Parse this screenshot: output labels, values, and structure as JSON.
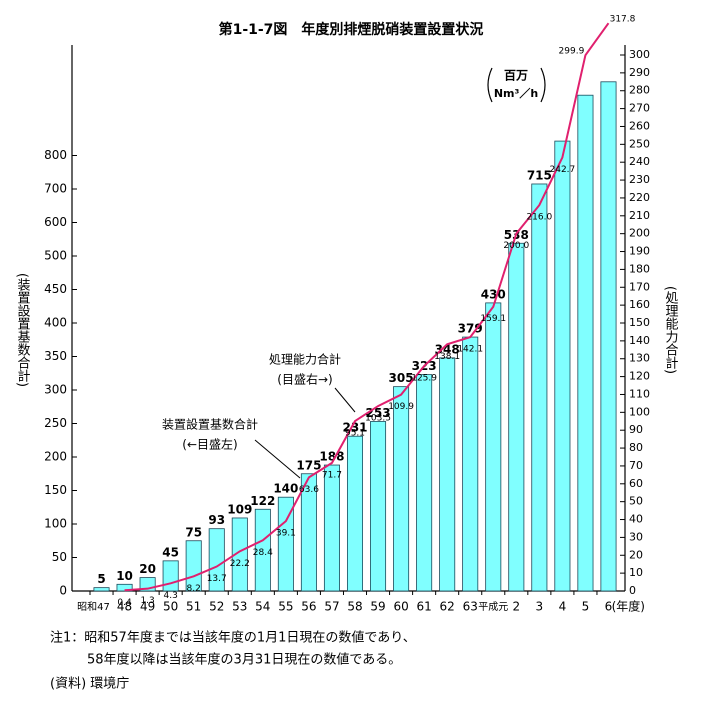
{
  "chart_data": {
    "type": "bar_line",
    "title": "第1-1-7図　年度別排煙脱硝装置設置状況",
    "categories": [
      "昭和47",
      "48",
      "49",
      "50",
      "51",
      "52",
      "53",
      "54",
      "55",
      "56",
      "57",
      "58",
      "59",
      "60",
      "61",
      "62",
      "63",
      "平成元",
      "2",
      "3",
      "4",
      "5",
      "6"
    ],
    "x_label": "(年度)",
    "y_label": "(装置設置基数合計)",
    "y2_label": "(処理能力合計)",
    "unit_label": [
      "百万",
      "Nm³／h"
    ],
    "series": [
      {
        "name": "装置設置基数合計",
        "note": "(←目盛左)",
        "color": "#80ffff",
        "axis": "y",
        "values": [
          5,
          10,
          20,
          45,
          75,
          93,
          109,
          122,
          140,
          175,
          188,
          231,
          253,
          305,
          323,
          348,
          379,
          430,
          538,
          715,
          843,
          980,
          1020
        ],
        "value_labels": [
          "5",
          "10",
          "20",
          "45",
          "75",
          "93",
          "109",
          "122",
          "140",
          "175",
          "188",
          "231",
          "253",
          "305",
          "323",
          "348",
          "379",
          "430",
          "538",
          "715",
          null,
          null,
          null
        ]
      },
      {
        "name": "処理能力合計",
        "note": "(目盛右→)",
        "color": "#e0206e",
        "axis": "y2",
        "values": [
          null,
          0.4,
          1.3,
          4.3,
          8.2,
          13.7,
          22.2,
          28.4,
          39.1,
          63.6,
          71.7,
          95.1,
          103.5,
          109.9,
          125.9,
          138.1,
          142.1,
          159.1,
          200.0,
          216.0,
          242.7,
          299.9,
          317.8
        ],
        "value_labels": [
          null,
          "0.4",
          "1.3",
          "4.3",
          "8.2",
          "13.7",
          "22.2",
          "28.4",
          "39.1",
          "63.6",
          "71.7",
          "95.1",
          "103.5",
          "109.9",
          "125.9",
          "138.1",
          "142.1",
          "159.1",
          "200.0",
          "216.0",
          "242.7",
          "299.9",
          "317.8"
        ]
      }
    ],
    "ylim": [
      0,
      1100
    ],
    "yticks": [
      0,
      50,
      100,
      150,
      200,
      250,
      300,
      350,
      400,
      450,
      500,
      600,
      700,
      800
    ],
    "y2lim": [
      0,
      300
    ],
    "y2ticks": [
      0,
      10,
      20,
      30,
      40,
      50,
      60,
      70,
      80,
      90,
      100,
      110,
      120,
      130,
      140,
      150,
      160,
      170,
      180,
      190,
      200,
      210,
      220,
      230,
      240,
      250,
      260,
      270,
      280,
      290,
      300
    ],
    "notes": [
      "注1：昭和57年度までは当該年度の1月1日現在の数値であり、",
      "58年度以降は当該年度の3月31日現在の数値である。",
      "(資料)  環境庁"
    ]
  }
}
